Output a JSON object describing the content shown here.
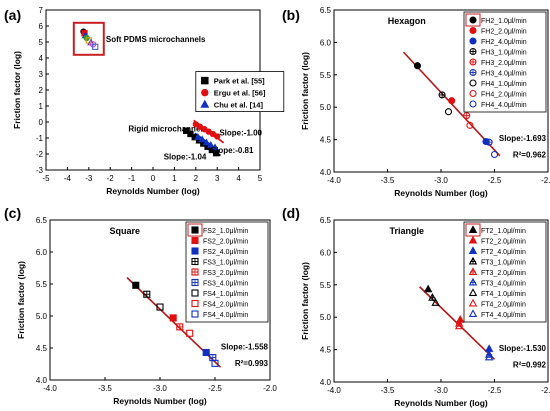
{
  "chart_data": [
    {
      "panel": "(a)",
      "type": "scatter",
      "title": "",
      "xlabel": "Reynolds Number (log)",
      "ylabel": "Friction factor (log)",
      "xlim": [
        -5,
        5
      ],
      "ylim": [
        -3,
        7
      ],
      "xticks": [
        "-5",
        "-4",
        "-3",
        "-2",
        "-1",
        "0",
        "1",
        "2",
        "3",
        "4",
        "5"
      ],
      "yticks": [
        "-3",
        "-2",
        "-1",
        "0",
        "1",
        "2",
        "3",
        "4",
        "5",
        "6",
        "7"
      ],
      "legend_position": "right",
      "annotations": {
        "soft": "Soft PDMS microchannels",
        "rigid": "Rigid microchannels",
        "slope1": "Slope:-1.00",
        "slope2": "Slope:-0.81",
        "slope3": "Slope:-1.04"
      },
      "series": [
        {
          "name": "Park et al. [55]",
          "color": "#000000",
          "marker": "square",
          "x": [
            1.55,
            1.75,
            1.95,
            2.15,
            2.35,
            2.55,
            2.75,
            2.95
          ],
          "y": [
            -0.55,
            -0.75,
            -0.95,
            -1.15,
            -1.35,
            -1.55,
            -1.75,
            -1.95
          ]
        },
        {
          "name": "Ergu et al. [56]",
          "color": "#e01010",
          "marker": "circle",
          "x": [
            2.0,
            2.2,
            2.4,
            2.6,
            2.8,
            3.0
          ],
          "y": [
            -0.15,
            -0.3,
            -0.45,
            -0.6,
            -0.75,
            -0.9
          ]
        },
        {
          "name": "Chu et al. [14]",
          "color": "#1030c0",
          "marker": "triangle",
          "x": [
            2.1,
            2.3,
            2.5,
            2.7,
            2.9
          ],
          "y": [
            -0.95,
            -1.1,
            -1.3,
            -1.45,
            -1.6
          ]
        },
        {
          "name": "",
          "color": "#7a3c8c",
          "marker": "mixed",
          "x": [
            -3.25,
            -3.2,
            -3.15,
            -3.1,
            -3.0,
            -2.9,
            -2.8,
            -2.7
          ],
          "y": [
            5.65,
            5.55,
            5.4,
            5.25,
            5.1,
            4.95,
            4.85,
            4.7
          ]
        }
      ]
    },
    {
      "panel": "(b)",
      "type": "scatter",
      "title": "Hexagon",
      "xlabel": "Reynolds Number (log)",
      "ylabel": "Friction factor (log)",
      "xlim": [
        -4.0,
        -2.0
      ],
      "ylim": [
        4.0,
        6.5
      ],
      "xticks": [
        "-4.0",
        "-3.5",
        "-3.0",
        "-2.5",
        "-2.0"
      ],
      "yticks": [
        "4.0",
        "4.5",
        "5.0",
        "5.5",
        "6.0",
        "6.5"
      ],
      "slope": "Slope:-1.693",
      "r2": "R²=0.962",
      "fit": [
        [
          -3.35,
          5.85
        ],
        [
          -2.45,
          4.25
        ]
      ],
      "series": [
        {
          "name": "FH2_1.0μl/min",
          "color": "#000000",
          "marker": "circle",
          "fill": true,
          "x": [
            -3.22
          ],
          "y": [
            5.64
          ]
        },
        {
          "name": "FH2_2.0μl/min",
          "color": "#e01010",
          "marker": "circle",
          "fill": true,
          "x": [
            -2.9
          ],
          "y": [
            5.1
          ]
        },
        {
          "name": "FH2_4.0μl/min",
          "color": "#1030c0",
          "marker": "circle",
          "fill": true,
          "x": [
            -2.58
          ],
          "y": [
            4.47
          ]
        },
        {
          "name": "FH3_1.0μl/min",
          "color": "#000000",
          "marker": "crosscircle",
          "fill": false,
          "x": [
            -2.99
          ],
          "y": [
            5.19
          ]
        },
        {
          "name": "FH3_2.0μl/min",
          "color": "#e01010",
          "marker": "crosscircle",
          "fill": false,
          "x": [
            -2.76
          ],
          "y": [
            4.87
          ]
        },
        {
          "name": "FH3_4.0μl/min",
          "color": "#1030c0",
          "marker": "crosscircle",
          "fill": false,
          "x": [
            -2.55
          ],
          "y": [
            4.46
          ]
        },
        {
          "name": "FH4_1.0μl/min",
          "color": "#000000",
          "marker": "circle",
          "fill": false,
          "x": [
            -2.93
          ],
          "y": [
            4.93
          ]
        },
        {
          "name": "FH4_2.0μl/min",
          "color": "#e01010",
          "marker": "circle",
          "fill": false,
          "x": [
            -2.73
          ],
          "y": [
            4.72
          ]
        },
        {
          "name": "FH4_4.0μl/min",
          "color": "#1030c0",
          "marker": "circle",
          "fill": false,
          "x": [
            -2.5
          ],
          "y": [
            4.27
          ]
        }
      ]
    },
    {
      "panel": "(c)",
      "type": "scatter",
      "title": "Square",
      "xlabel": "Reynolds Number (log)",
      "ylabel": "Friction factor (log)",
      "xlim": [
        -4.0,
        -2.0
      ],
      "ylim": [
        4.0,
        6.5
      ],
      "xticks": [
        "-4.0",
        "-3.5",
        "-3.0",
        "-2.5",
        "-2.0"
      ],
      "yticks": [
        "4.0",
        "4.5",
        "5.0",
        "5.5",
        "6.0",
        "6.5"
      ],
      "slope": "Slope:-1.558",
      "r2": "R²=0.993",
      "fit": [
        [
          -3.3,
          5.6
        ],
        [
          -2.45,
          4.2
        ]
      ],
      "series": [
        {
          "name": "FS2_1.0μl/min",
          "color": "#000000",
          "marker": "square",
          "fill": true,
          "x": [
            -3.22
          ],
          "y": [
            5.48
          ]
        },
        {
          "name": "FS2_2.0μl/min",
          "color": "#e01010",
          "marker": "square",
          "fill": true,
          "x": [
            -2.88
          ],
          "y": [
            4.97
          ]
        },
        {
          "name": "FS2_4.0μl/min",
          "color": "#1030c0",
          "marker": "square",
          "fill": true,
          "x": [
            -2.58
          ],
          "y": [
            4.43
          ]
        },
        {
          "name": "FS3_1.0μl/min",
          "color": "#000000",
          "marker": "crosssquare",
          "fill": false,
          "x": [
            -3.12
          ],
          "y": [
            5.34
          ]
        },
        {
          "name": "FS3_2.0μl/min",
          "color": "#e01010",
          "marker": "crosssquare",
          "fill": false,
          "x": [
            -2.82
          ],
          "y": [
            4.83
          ]
        },
        {
          "name": "FS3_4.0μl/min",
          "color": "#1030c0",
          "marker": "crosssquare",
          "fill": false,
          "x": [
            -2.52
          ],
          "y": [
            4.35
          ]
        },
        {
          "name": "FS4_1.0μl/min",
          "color": "#000000",
          "marker": "square",
          "fill": false,
          "x": [
            -3.0
          ],
          "y": [
            5.14
          ]
        },
        {
          "name": "FS4_2.0μl/min",
          "color": "#e01010",
          "marker": "square",
          "fill": false,
          "x": [
            -2.73
          ],
          "y": [
            4.73
          ]
        },
        {
          "name": "FS4_4.0μl/min",
          "color": "#1030c0",
          "marker": "square",
          "fill": false,
          "x": [
            -2.5
          ],
          "y": [
            4.26
          ]
        }
      ]
    },
    {
      "panel": "(d)",
      "type": "scatter",
      "title": "Triangle",
      "xlabel": "Reynolds Number (log)",
      "ylabel": "Friction factor (log)",
      "xlim": [
        -4.0,
        -2.0
      ],
      "ylim": [
        4.0,
        6.5
      ],
      "xticks": [
        "-4.0",
        "-3.5",
        "-3.0",
        "-2.5",
        "-2.0"
      ],
      "yticks": [
        "4.0",
        "4.5",
        "5.0",
        "5.5",
        "6.0",
        "6.5"
      ],
      "slope": "Slope:-1.530",
      "r2": "R²=0.992",
      "fit": [
        [
          -3.2,
          5.47
        ],
        [
          -2.5,
          4.35
        ]
      ],
      "series": [
        {
          "name": "FT2_1.0μl/min",
          "color": "#000000",
          "marker": "triangle",
          "fill": true,
          "x": [
            -3.12
          ],
          "y": [
            5.43
          ]
        },
        {
          "name": "FT2_2.0μl/min",
          "color": "#e01010",
          "marker": "triangle",
          "fill": true,
          "x": [
            -2.82
          ],
          "y": [
            4.96
          ]
        },
        {
          "name": "FT2_4.0μl/min",
          "color": "#1030c0",
          "marker": "triangle",
          "fill": true,
          "x": [
            -2.55
          ],
          "y": [
            4.51
          ]
        },
        {
          "name": "FT3_1.0μl/min",
          "color": "#000000",
          "marker": "crosstriangle",
          "fill": false,
          "x": [
            -3.08
          ],
          "y": [
            5.3
          ]
        },
        {
          "name": "FT3_2.0μl/min",
          "color": "#e01010",
          "marker": "crosstriangle",
          "fill": false,
          "x": [
            -2.83
          ],
          "y": [
            4.9
          ]
        },
        {
          "name": "FT3_4.0μl/min",
          "color": "#1030c0",
          "marker": "crosstriangle",
          "fill": false,
          "x": [
            -2.55
          ],
          "y": [
            4.42
          ]
        },
        {
          "name": "FT4_1.0μl/min",
          "color": "#000000",
          "marker": "triangle",
          "fill": false,
          "x": [
            -3.05
          ],
          "y": [
            5.22
          ]
        },
        {
          "name": "FT4_2.0μl/min",
          "color": "#e01010",
          "marker": "triangle",
          "fill": false,
          "x": [
            -2.83
          ],
          "y": [
            4.86
          ]
        },
        {
          "name": "FT4_4.0μl/min",
          "color": "#1030c0",
          "marker": "triangle",
          "fill": false,
          "x": [
            -2.55
          ],
          "y": [
            4.38
          ]
        }
      ]
    }
  ]
}
